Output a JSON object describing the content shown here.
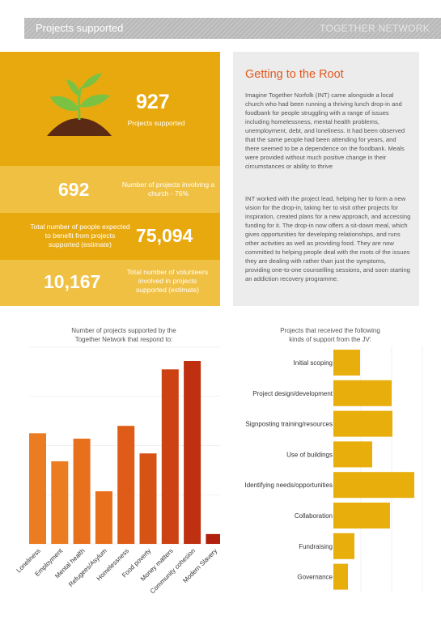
{
  "header": {
    "title": "Projects supported",
    "brand": "TOGETHER NETWORK"
  },
  "stats": {
    "projects": {
      "value": "927",
      "label": "Projects supported"
    },
    "church": {
      "value": "692",
      "label": "Number of projects involving a church - 76%"
    },
    "people": {
      "value": "75,094",
      "label": "Total number of people expected to benefit from projects supported (estimate)"
    },
    "volunteers": {
      "value": "10,167",
      "label": "Total number of volunteers involved in projects supported (estimate)"
    }
  },
  "article": {
    "title": "Getting to the Root",
    "p1": "Imagine Together Norfolk (INT) came alongside a local church who had been running a thriving lunch drop-in and foodbank for people struggling with a range of issues including homelessness, mental health problems, unemployment, debt, and loneliness. It had been observed that the same people had been attending for years, and there seemed to be a dependence on the foodbank. Meals were provided without much positive change in their circumstances or ability to thrive",
    "p2": "INT worked with the project lead, helping her to form a new vision for the drop-in, taking her to visit other projects for inspiration, created plans for a new approach, and accessing funding for it. The drop-in now offers a sit-down meal, which gives opportunities for developing relationships, and runs other activities as well as providing food. They are now committed to helping people deal with the roots of the issues they are dealing with rather than just the symptoms, providing one-to-one counselling sessions, and soon starting an addiction recovery programme."
  },
  "colors": {
    "amber": "#e8a90e",
    "amber_light": "#f0c043",
    "orange_title": "#e2581c",
    "bar_gold": "#e8ae0c"
  },
  "chart_data": [
    {
      "type": "bar",
      "title": "Number of projects supported by the Together Network that respond to:",
      "categories": [
        "Loneliness",
        "Employment",
        "Mental health",
        "Refugees/Asylum",
        "Homelessness",
        "Food poverty",
        "Money matters",
        "Community cohesion",
        "Modern Slavery"
      ],
      "values": [
        225,
        168,
        214,
        107,
        240,
        184,
        355,
        372,
        20
      ],
      "colors": [
        "#ec7c22",
        "#ec7c22",
        "#e8701c",
        "#e8701c",
        "#de5c17",
        "#d65215",
        "#cc4212",
        "#be3010",
        "#b0200d"
      ],
      "ylim": [
        0,
        400
      ],
      "y_ticks": [
        "",
        "",
        "",
        "",
        ""
      ],
      "grid": true
    },
    {
      "type": "bar",
      "orientation": "horizontal",
      "title": "Projects that received the following kinds of support from the JV:",
      "categories": [
        "Initial scoping",
        "Project design/development",
        "Signposting training/resources",
        "Use of buildings",
        "Identifying needs/opportunities",
        "Collaboration",
        "Fundraising",
        "Governance"
      ],
      "values": [
        33,
        72,
        73,
        48,
        100,
        70,
        26,
        18
      ],
      "grid": true
    }
  ]
}
